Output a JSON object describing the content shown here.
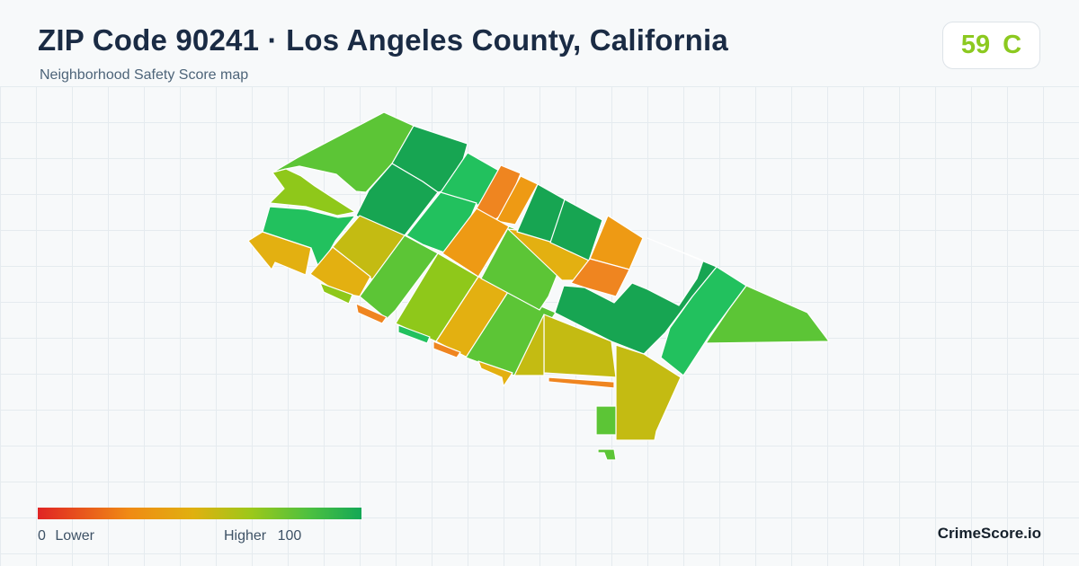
{
  "header": {
    "title": "ZIP Code 90241 · Los Angeles County, California",
    "subtitle": "Neighborhood Safety Score map"
  },
  "score": {
    "value": "59",
    "grade": "C",
    "color": "#8cc920"
  },
  "legend": {
    "min_value": "0",
    "min_label": "Lower",
    "max_label": "Higher",
    "max_value": "100",
    "colors": [
      "#e02424",
      "#f08a14",
      "#e0b010",
      "#9cc81a",
      "#4cc040",
      "#14a856"
    ]
  },
  "brand": "CrimeScore.io",
  "palette": {
    "dark_green": "#17a552",
    "green": "#22c15e",
    "light_green": "#5cc536",
    "yellow_green": "#8fc81a",
    "olive": "#c4bb12",
    "amber": "#e3b011",
    "orange": "#ee9a14",
    "dark_orange": "#ef8520"
  }
}
